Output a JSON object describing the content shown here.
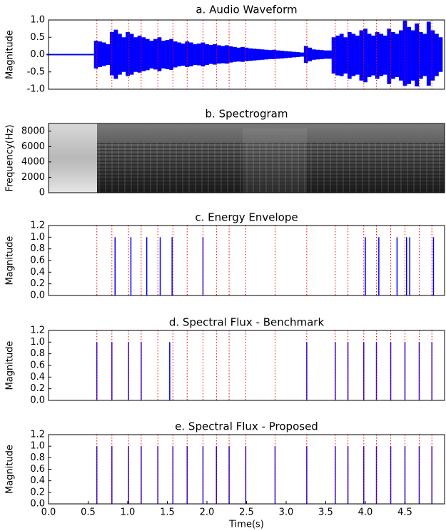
{
  "chart_data": [
    {
      "type": "waveform",
      "title": "a. Audio Waveform",
      "ylabel": "Magnitude",
      "color": "#0000ff",
      "onset_color": "#ff0000",
      "xlim": [
        0,
        5.0
      ],
      "ylim": [
        -1,
        1
      ],
      "yticks": [
        {
          "value": -1,
          "label": "-1.0"
        },
        {
          "value": -0.5,
          "label": "-0.5"
        },
        {
          "value": 0,
          "label": "0.0"
        },
        {
          "value": 0.5,
          "label": "0.5"
        },
        {
          "value": 1,
          "label": "1.0"
        }
      ],
      "x": [
        0,
        0.05,
        0.1,
        0.15,
        0.2,
        0.25,
        0.3,
        0.35,
        0.4,
        0.45,
        0.5,
        0.55,
        0.6,
        0.65,
        0.7,
        0.75,
        0.8,
        0.85,
        0.9,
        0.95,
        1.0,
        1.05,
        1.1,
        1.15,
        1.2,
        1.25,
        1.3,
        1.35,
        1.4,
        1.45,
        1.5,
        1.55,
        1.6,
        1.65,
        1.7,
        1.75,
        1.8,
        1.85,
        1.9,
        1.95,
        2.0,
        2.05,
        2.1,
        2.15,
        2.2,
        2.25,
        2.3,
        2.35,
        2.4,
        2.45,
        2.5,
        2.55,
        2.6,
        2.65,
        2.7,
        2.75,
        2.8,
        2.85,
        2.9,
        2.95,
        3.0,
        3.05,
        3.1,
        3.15,
        3.2,
        3.25,
        3.3,
        3.35,
        3.4,
        3.45,
        3.5,
        3.55,
        3.6,
        3.65,
        3.7,
        3.75,
        3.8,
        3.85,
        3.9,
        3.95,
        4.0,
        4.05,
        4.1,
        4.15,
        4.2,
        4.25,
        4.3,
        4.35,
        4.4,
        4.45,
        4.5,
        4.55,
        4.6,
        4.65,
        4.7,
        4.75,
        4.8,
        4.85,
        4.9,
        4.95
      ],
      "upper": [
        0.02,
        0.02,
        0.02,
        0.02,
        0.02,
        0.02,
        0.02,
        0.02,
        0.02,
        0.02,
        0.02,
        0.02,
        0.4,
        0.38,
        0.35,
        0.3,
        0.65,
        0.72,
        0.6,
        0.5,
        0.65,
        0.6,
        0.5,
        0.55,
        0.5,
        0.45,
        0.4,
        0.45,
        0.5,
        0.4,
        0.42,
        0.45,
        0.38,
        0.35,
        0.32,
        0.38,
        0.35,
        0.3,
        0.32,
        0.35,
        0.3,
        0.28,
        0.3,
        0.27,
        0.25,
        0.27,
        0.24,
        0.22,
        0.2,
        0.22,
        0.2,
        0.18,
        0.17,
        0.16,
        0.15,
        0.14,
        0.13,
        0.14,
        0.12,
        0.11,
        0.1,
        0.09,
        0.08,
        0.07,
        0.06,
        0.25,
        0.2,
        0.15,
        0.14,
        0.13,
        0.12,
        0.12,
        0.5,
        0.55,
        0.6,
        0.5,
        0.65,
        0.6,
        0.55,
        0.7,
        0.75,
        0.6,
        0.55,
        0.65,
        0.6,
        0.55,
        0.75,
        0.65,
        0.6,
        0.7,
        0.98,
        0.8,
        0.7,
        0.9,
        0.65,
        0.6,
        0.95,
        0.7,
        0.6,
        0.5
      ],
      "lower": [
        -0.02,
        -0.02,
        -0.02,
        -0.02,
        -0.02,
        -0.02,
        -0.02,
        -0.02,
        -0.02,
        -0.02,
        -0.02,
        -0.02,
        -0.4,
        -0.36,
        -0.33,
        -0.3,
        -0.6,
        -0.7,
        -0.58,
        -0.5,
        -0.62,
        -0.58,
        -0.5,
        -0.52,
        -0.48,
        -0.45,
        -0.4,
        -0.43,
        -0.48,
        -0.4,
        -0.42,
        -0.44,
        -0.37,
        -0.34,
        -0.32,
        -0.36,
        -0.34,
        -0.3,
        -0.31,
        -0.34,
        -0.3,
        -0.27,
        -0.29,
        -0.26,
        -0.25,
        -0.26,
        -0.23,
        -0.21,
        -0.2,
        -0.21,
        -0.19,
        -0.18,
        -0.17,
        -0.16,
        -0.15,
        -0.14,
        -0.13,
        -0.13,
        -0.12,
        -0.11,
        -0.1,
        -0.09,
        -0.08,
        -0.07,
        -0.06,
        -0.24,
        -0.19,
        -0.15,
        -0.14,
        -0.13,
        -0.12,
        -0.12,
        -0.55,
        -0.6,
        -0.62,
        -0.55,
        -0.7,
        -0.62,
        -0.58,
        -0.75,
        -0.8,
        -0.65,
        -0.6,
        -0.7,
        -0.62,
        -0.58,
        -0.85,
        -0.7,
        -0.65,
        -0.75,
        -0.9,
        -0.85,
        -0.75,
        -0.92,
        -0.7,
        -0.62,
        -0.9,
        -0.75,
        -0.62,
        -0.5
      ],
      "onsets": [
        0.61,
        0.8,
        1.01,
        1.17,
        1.38,
        1.57,
        1.75,
        1.95,
        2.12,
        2.28,
        2.49,
        2.86,
        3.26,
        3.62,
        3.78,
        3.98,
        4.14,
        4.32,
        4.5,
        4.68,
        4.84
      ]
    },
    {
      "type": "spectrogram",
      "title": "b. Spectrogram",
      "ylabel": "Frequency(Hz)",
      "xlim": [
        0,
        5.0
      ],
      "ylim": [
        0,
        9000
      ],
      "yticks": [
        0,
        2000,
        4000,
        6000,
        8000
      ]
    },
    {
      "type": "onset",
      "title": "c. Energy Envelope",
      "ylabel": "Magnitude",
      "color": "#0000ff",
      "onset_color": "#ff0000",
      "xlim": [
        0,
        5.0
      ],
      "ylim": [
        0,
        1.2
      ],
      "yticks": [
        {
          "value": 0,
          "label": "0.0"
        },
        {
          "value": 0.2,
          "label": "0.2"
        },
        {
          "value": 0.4,
          "label": "0.4"
        },
        {
          "value": 0.6,
          "label": "0.6"
        },
        {
          "value": 0.8,
          "label": "0.8"
        },
        {
          "value": 1,
          "label": "1.0"
        },
        {
          "value": 1.2,
          "label": "1.2"
        }
      ],
      "x": [
        0.84,
        1.04,
        1.24,
        1.41,
        1.56,
        1.95,
        4.0,
        4.17,
        4.4,
        4.52,
        4.56,
        4.86
      ],
      "values": [
        1,
        1,
        1,
        1,
        1,
        1,
        1,
        1,
        1,
        1,
        1,
        1
      ],
      "onsets": [
        0.61,
        0.8,
        1.01,
        1.17,
        1.38,
        1.57,
        1.75,
        1.95,
        2.12,
        2.28,
        2.49,
        2.86,
        3.26,
        3.62,
        3.78,
        3.98,
        4.14,
        4.32,
        4.5,
        4.68,
        4.84
      ]
    },
    {
      "type": "onset",
      "title": "d. Spectral Flux - Benchmark",
      "ylabel": "Magnitude",
      "color": "#0000ff",
      "onset_color": "#ff0000",
      "xlim": [
        0,
        5.0
      ],
      "ylim": [
        0,
        1.2
      ],
      "yticks": [
        {
          "value": 0,
          "label": "0.0"
        },
        {
          "value": 0.2,
          "label": "0.2"
        },
        {
          "value": 0.4,
          "label": "0.4"
        },
        {
          "value": 0.6,
          "label": "0.6"
        },
        {
          "value": 0.8,
          "label": "0.8"
        },
        {
          "value": 1,
          "label": "1.0"
        },
        {
          "value": 1.2,
          "label": "1.2"
        }
      ],
      "x": [
        0.61,
        0.8,
        1.01,
        1.17,
        1.53,
        3.26,
        3.62,
        3.78,
        3.98,
        4.14,
        4.32,
        4.5,
        4.68,
        4.84
      ],
      "values": [
        1,
        1,
        1,
        1,
        1,
        1,
        1,
        1,
        1,
        1,
        1,
        1,
        1,
        1
      ],
      "onsets": [
        0.61,
        0.8,
        1.01,
        1.17,
        1.38,
        1.57,
        1.75,
        1.95,
        2.12,
        2.28,
        2.49,
        2.86,
        3.26,
        3.62,
        3.78,
        3.98,
        4.14,
        4.32,
        4.5,
        4.68,
        4.84
      ]
    },
    {
      "type": "onset",
      "title": "e. Spectral Flux - Proposed",
      "ylabel": "Magnitude",
      "xlabel": "Time(s)",
      "color": "#0000ff",
      "onset_color": "#ff0000",
      "xlim": [
        0,
        5.0
      ],
      "ylim": [
        0,
        1.2
      ],
      "xticks": [
        {
          "value": 0,
          "label": "0.0"
        },
        {
          "value": 0.5,
          "label": "0.5"
        },
        {
          "value": 1,
          "label": "1.0"
        },
        {
          "value": 1.5,
          "label": "1.5"
        },
        {
          "value": 2,
          "label": "2.0"
        },
        {
          "value": 2.5,
          "label": "2.5"
        },
        {
          "value": 3,
          "label": "3.0"
        },
        {
          "value": 3.5,
          "label": "3.5"
        },
        {
          "value": 4,
          "label": "4.0"
        },
        {
          "value": 4.5,
          "label": "4.5"
        }
      ],
      "yticks": [
        {
          "value": 0,
          "label": "0.0"
        },
        {
          "value": 0.2,
          "label": "0.2"
        },
        {
          "value": 0.4,
          "label": "0.4"
        },
        {
          "value": 0.6,
          "label": "0.6"
        },
        {
          "value": 0.8,
          "label": "0.8"
        },
        {
          "value": 1,
          "label": "1.0"
        },
        {
          "value": 1.2,
          "label": "1.2"
        }
      ],
      "x": [
        0.61,
        0.8,
        1.01,
        1.17,
        1.38,
        1.57,
        1.75,
        1.95,
        2.12,
        2.28,
        2.49,
        2.86,
        3.26,
        3.62,
        3.78,
        3.98,
        4.14,
        4.32,
        4.5,
        4.68,
        4.84
      ],
      "values": [
        1,
        1,
        1,
        1,
        1,
        1,
        1,
        1,
        1,
        1,
        1,
        1,
        1,
        1,
        1,
        1,
        1,
        1,
        1,
        1,
        1
      ],
      "onsets": [
        0.61,
        0.8,
        1.01,
        1.17,
        1.38,
        1.57,
        1.75,
        1.95,
        2.12,
        2.28,
        2.49,
        2.86,
        3.26,
        3.62,
        3.78,
        3.98,
        4.14,
        4.32,
        4.5,
        4.68,
        4.84
      ]
    }
  ]
}
